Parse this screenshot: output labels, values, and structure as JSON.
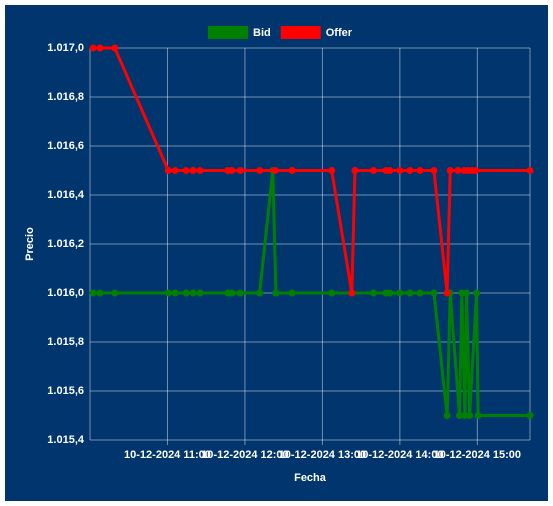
{
  "chart_data": {
    "type": "line",
    "x_label": "Fecha",
    "y_label": "Precio",
    "xlim": [
      10.0,
      15.68
    ],
    "ylim": [
      1015.4,
      1017.0
    ],
    "xticks": [
      {
        "value": 11,
        "label": "10-12-2024 11:00"
      },
      {
        "value": 12,
        "label": "10-12-2024 12:00"
      },
      {
        "value": 13,
        "label": "10-12-2024 13:00"
      },
      {
        "value": 14,
        "label": "10-12-2024 14:00"
      },
      {
        "value": 15,
        "label": "10-12-2024 15:00"
      }
    ],
    "yticks": [
      {
        "value": 1015.4,
        "label": "1.015,4"
      },
      {
        "value": 1015.6,
        "label": "1.015,6"
      },
      {
        "value": 1015.8,
        "label": "1.015,8"
      },
      {
        "value": 1016.0,
        "label": "1.016,0"
      },
      {
        "value": 1016.2,
        "label": "1.016,2"
      },
      {
        "value": 1016.4,
        "label": "1.016,4"
      },
      {
        "value": 1016.6,
        "label": "1.016,6"
      },
      {
        "value": 1016.8,
        "label": "1.016,8"
      },
      {
        "value": 1017.0,
        "label": "1.017,0"
      }
    ],
    "grid": true,
    "series": [
      {
        "name": "Bid",
        "color": "#008000",
        "x": [
          10.04,
          10.13,
          10.32,
          11.01,
          11.1,
          11.24,
          11.33,
          11.42,
          11.78,
          11.83,
          11.94,
          12.19,
          12.36,
          12.4,
          12.61,
          13.12,
          13.38,
          13.66,
          13.82,
          13.87,
          14.0,
          14.13,
          14.26,
          14.44,
          14.61,
          14.65,
          14.77,
          14.8,
          14.84,
          14.86,
          14.9,
          14.99,
          15.01,
          15.68
        ],
        "values": [
          1016.0,
          1016.0,
          1016.0,
          1016.0,
          1016.0,
          1016.0,
          1016.0,
          1016.0,
          1016.0,
          1016.0,
          1016.0,
          1016.0,
          1016.5,
          1016.0,
          1016.0,
          1016.0,
          1016.0,
          1016.0,
          1016.0,
          1016.0,
          1016.0,
          1016.0,
          1016.0,
          1016.0,
          1015.5,
          1016.0,
          1015.5,
          1016.0,
          1015.5,
          1016.0,
          1015.5,
          1016.0,
          1015.5,
          1015.5
        ]
      },
      {
        "name": "Offer",
        "color": "#ff0000",
        "x": [
          10.04,
          10.13,
          10.32,
          11.01,
          11.1,
          11.24,
          11.33,
          11.42,
          11.78,
          11.83,
          11.94,
          12.19,
          12.39,
          12.61,
          13.12,
          13.38,
          13.42,
          13.66,
          13.82,
          13.87,
          14.0,
          14.13,
          14.26,
          14.44,
          14.61,
          14.65,
          14.75,
          14.83,
          14.88,
          14.93,
          14.98,
          15.68
        ],
        "values": [
          1017.0,
          1017.0,
          1017.0,
          1016.5,
          1016.5,
          1016.5,
          1016.5,
          1016.5,
          1016.5,
          1016.5,
          1016.5,
          1016.5,
          1016.5,
          1016.5,
          1016.5,
          1016.0,
          1016.5,
          1016.5,
          1016.5,
          1016.5,
          1016.5,
          1016.5,
          1016.5,
          1016.5,
          1016.0,
          1016.5,
          1016.5,
          1016.5,
          1016.5,
          1016.5,
          1016.5,
          1016.5
        ]
      }
    ]
  }
}
